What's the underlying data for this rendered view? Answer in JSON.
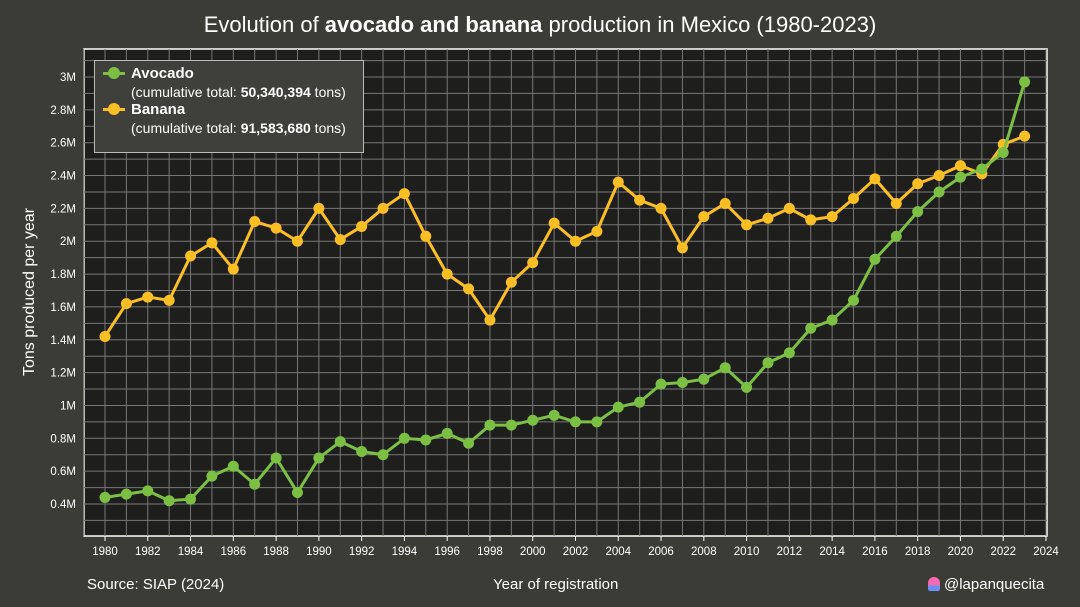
{
  "title_parts": {
    "pre": "Evolution of ",
    "bold": "avocado and banana",
    "post": " production in Mexico (1980-2023)"
  },
  "footer": {
    "source": "Source: SIAP (2024)",
    "credit": "@lapanquecita"
  },
  "legend": {
    "avocado": {
      "name": "Avocado",
      "pre": "(cumulative total: ",
      "total": "50,340,394",
      "post": " tons)"
    },
    "banana": {
      "name": "Banana",
      "pre": "(cumulative total: ",
      "total": "91,583,680",
      "post": " tons)"
    }
  },
  "chart_data": {
    "type": "line",
    "title": "Evolution of avocado and banana production in Mexico (1980-2023)",
    "xlabel": "Year of registration",
    "ylabel": "Tons produced per year",
    "xlim": [
      1979,
      2024
    ],
    "ylim": [
      0.2,
      3.15
    ],
    "x_ticks": [
      1980,
      1982,
      1984,
      1986,
      1988,
      1990,
      1992,
      1994,
      1996,
      1998,
      2000,
      2002,
      2004,
      2006,
      2008,
      2010,
      2012,
      2014,
      2016,
      2018,
      2020,
      2022,
      2024
    ],
    "y_ticks": [
      0.4,
      0.6,
      0.8,
      1,
      1.2,
      1.4,
      1.6,
      1.8,
      2,
      2.2,
      2.4,
      2.6,
      2.8,
      3
    ],
    "y_tick_labels": [
      "0.4M",
      "0.6M",
      "0.8M",
      "1M",
      "1.2M",
      "1.4M",
      "1.6M",
      "1.8M",
      "2M",
      "2.2M",
      "2.4M",
      "2.6M",
      "2.8M",
      "3M"
    ],
    "y_unit": "million tons",
    "grid": true,
    "legend_position": "top-left",
    "x": [
      1980,
      1981,
      1982,
      1983,
      1984,
      1985,
      1986,
      1987,
      1988,
      1989,
      1990,
      1991,
      1992,
      1993,
      1994,
      1995,
      1996,
      1997,
      1998,
      1999,
      2000,
      2001,
      2002,
      2003,
      2004,
      2005,
      2006,
      2007,
      2008,
      2009,
      2010,
      2011,
      2012,
      2013,
      2014,
      2015,
      2016,
      2017,
      2018,
      2019,
      2020,
      2021,
      2022,
      2023
    ],
    "series": [
      {
        "name": "Avocado",
        "color": "#7bc043",
        "values": [
          0.44,
          0.46,
          0.48,
          0.42,
          0.43,
          0.57,
          0.63,
          0.52,
          0.68,
          0.47,
          0.68,
          0.78,
          0.72,
          0.7,
          0.8,
          0.79,
          0.83,
          0.77,
          0.88,
          0.88,
          0.91,
          0.94,
          0.9,
          0.9,
          0.99,
          1.02,
          1.13,
          1.14,
          1.16,
          1.23,
          1.11,
          1.26,
          1.32,
          1.47,
          1.52,
          1.64,
          1.89,
          2.03,
          2.18,
          2.3,
          2.39,
          2.44,
          2.54,
          2.97
        ]
      },
      {
        "name": "Banana",
        "color": "#fbbf24",
        "values": [
          1.42,
          1.62,
          1.66,
          1.64,
          1.91,
          1.99,
          1.83,
          2.12,
          2.08,
          2.0,
          2.2,
          2.01,
          2.09,
          2.2,
          2.29,
          2.03,
          1.8,
          1.71,
          1.52,
          1.75,
          1.87,
          2.11,
          2.0,
          2.06,
          2.36,
          2.25,
          2.2,
          1.96,
          2.15,
          2.23,
          2.1,
          2.14,
          2.2,
          2.13,
          2.15,
          2.26,
          2.38,
          2.23,
          2.35,
          2.4,
          2.46,
          2.41,
          2.59,
          2.64
        ]
      }
    ]
  }
}
